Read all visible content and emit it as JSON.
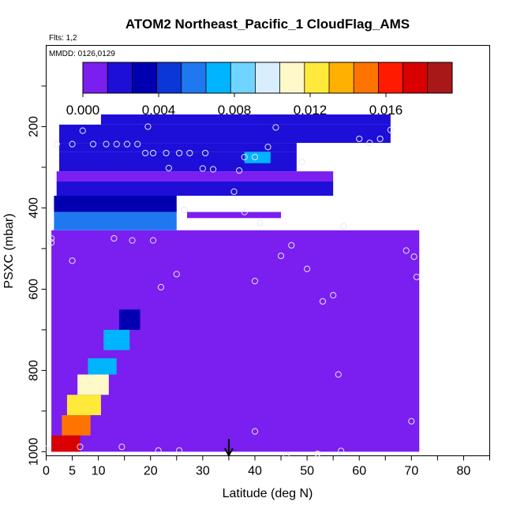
{
  "chart_data": {
    "type": "heatmap",
    "title": "ATOM2 Northeast_Pacific_1 CloudFlag_AMS",
    "flights_label": "Flts: 1,2",
    "dates_label": "MMDD: 0126,0129",
    "xlabel": "Latitude (deg N)",
    "ylabel": "PSXC (mbar)",
    "xlim": [
      0,
      85
    ],
    "ylim": [
      1010,
      0
    ],
    "x_ticks": [
      0,
      5,
      10,
      20,
      30,
      40,
      50,
      60,
      70,
      80
    ],
    "y_ticks": [
      200,
      400,
      600,
      800,
      1000
    ],
    "colorbar": {
      "range": [
        0,
        0.0195
      ],
      "tick_values": [
        0,
        0.004,
        0.008,
        0.012,
        0.016
      ],
      "tick_labels": [
        "0.000",
        "0.004",
        "0.008",
        "0.012",
        "0.016"
      ],
      "colors": [
        "#7b1ef0",
        "#1d0fd8",
        "#0000b0",
        "#0a37d6",
        "#1f78f0",
        "#00b4ff",
        "#6fd4ff",
        "#d8eeff",
        "#fff8c8",
        "#ffea3c",
        "#ffb000",
        "#ff7400",
        "#ff1a00",
        "#d80000",
        "#a81818"
      ]
    },
    "marker": {
      "latitude": 35,
      "label": "↓"
    },
    "cells": [
      {
        "lat": [
          10.5,
          66
        ],
        "p": [
          170,
          195
        ],
        "v": 0.0025
      },
      {
        "lat": [
          2.5,
          66
        ],
        "p": [
          195,
          240
        ],
        "v": 0.0022
      },
      {
        "lat": [
          2.5,
          48
        ],
        "p": [
          240,
          262
        ],
        "v": 0.0024
      },
      {
        "lat": [
          2.5,
          48
        ],
        "p": [
          262,
          310
        ],
        "v": 0.0015
      },
      {
        "lat": [
          2,
          55
        ],
        "p": [
          310,
          335
        ],
        "v": 0.0012
      },
      {
        "lat": [
          2,
          55
        ],
        "p": [
          335,
          370
        ],
        "v": 0.0018
      },
      {
        "lat": [
          1.5,
          25
        ],
        "p": [
          370,
          410
        ],
        "v": 0.003
      },
      {
        "lat": [
          1.5,
          25
        ],
        "p": [
          410,
          455
        ],
        "v": 0.0055
      },
      {
        "lat": [
          38,
          43
        ],
        "p": [
          262,
          290
        ],
        "v": 0.007
      },
      {
        "lat": [
          27,
          45
        ],
        "p": [
          410,
          425
        ],
        "v": 0.001
      },
      {
        "lat": [
          14,
          18
        ],
        "p": [
          650,
          700
        ],
        "v": 0.003
      },
      {
        "lat": [
          11,
          16
        ],
        "p": [
          700,
          750
        ],
        "v": 0.0065
      },
      {
        "lat": [
          8,
          13.5
        ],
        "p": [
          770,
          810
        ],
        "v": 0.0075
      },
      {
        "lat": [
          6,
          12
        ],
        "p": [
          810,
          860
        ],
        "v": 0.0105
      },
      {
        "lat": [
          4,
          10.5
        ],
        "p": [
          860,
          910
        ],
        "v": 0.0125
      },
      {
        "lat": [
          3,
          8.5
        ],
        "p": [
          910,
          960
        ],
        "v": 0.0145
      },
      {
        "lat": [
          1,
          6.5
        ],
        "p": [
          960,
          1000
        ],
        "v": 0.017
      }
    ],
    "points": [
      [
        7,
        210
      ],
      [
        19.5,
        200
      ],
      [
        44,
        202
      ],
      [
        2,
        243
      ],
      [
        5,
        243
      ],
      [
        9,
        243
      ],
      [
        11.5,
        243
      ],
      [
        13.5,
        243
      ],
      [
        15.5,
        243
      ],
      [
        17.5,
        243
      ],
      [
        60,
        230
      ],
      [
        62,
        240
      ],
      [
        64,
        230
      ],
      [
        66,
        208
      ],
      [
        19,
        265
      ],
      [
        20.5,
        265
      ],
      [
        23,
        265
      ],
      [
        25.5,
        265
      ],
      [
        27.5,
        265
      ],
      [
        30.5,
        265
      ],
      [
        40,
        275
      ],
      [
        42.5,
        250
      ],
      [
        49,
        287
      ],
      [
        23.5,
        302
      ],
      [
        30,
        303
      ],
      [
        32,
        305
      ],
      [
        37,
        308
      ],
      [
        38,
        275
      ],
      [
        36,
        360
      ],
      [
        26.5,
        405
      ],
      [
        38,
        410
      ],
      [
        41,
        437
      ],
      [
        57,
        445
      ],
      [
        1,
        475
      ],
      [
        1,
        485
      ],
      [
        5,
        530
      ],
      [
        13,
        475
      ],
      [
        16.5,
        480
      ],
      [
        20.5,
        480
      ],
      [
        45,
        518
      ],
      [
        47,
        492
      ],
      [
        50,
        550
      ],
      [
        53,
        630
      ],
      [
        55,
        615
      ],
      [
        69,
        505
      ],
      [
        70.5,
        520
      ],
      [
        71,
        570
      ],
      [
        22,
        595
      ],
      [
        25,
        563
      ],
      [
        40,
        580
      ],
      [
        70,
        925
      ],
      [
        40,
        950
      ],
      [
        56,
        810
      ],
      [
        14.5,
        988
      ],
      [
        6.5,
        988
      ],
      [
        21.5,
        997
      ],
      [
        25.5,
        997
      ],
      [
        46,
        1008
      ],
      [
        52,
        1005
      ],
      [
        56.5,
        998
      ],
      [
        0,
        993
      ]
    ]
  }
}
